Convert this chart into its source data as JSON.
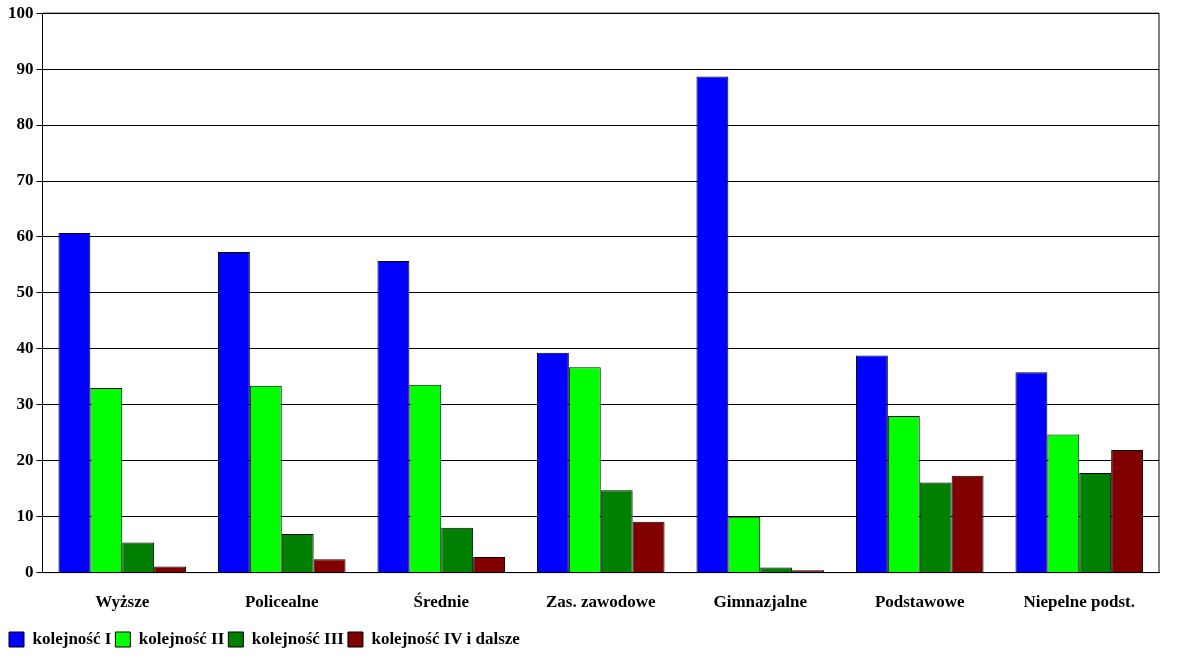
{
  "chart_data": {
    "type": "bar",
    "categories": [
      "Wyższe",
      "Policealne",
      "Średnie",
      "Zas. zawodowe",
      "Gimnazjalne",
      "Podstawowe",
      "Niepelne podst."
    ],
    "series": [
      {
        "name": "kolejność I",
        "color": "#0000ff",
        "values": [
          60.7,
          57.3,
          55.7,
          39.3,
          88.7,
          38.8,
          35.8
        ]
      },
      {
        "name": "kolejność II",
        "color": "#00ff00",
        "values": [
          33.0,
          33.4,
          33.6,
          36.7,
          10.0,
          28.0,
          24.7
        ]
      },
      {
        "name": "kolejność III",
        "color": "#008000",
        "values": [
          5.4,
          6.9,
          8.0,
          14.7,
          0.9,
          16.1,
          17.8
        ]
      },
      {
        "name": "kolejność IV i dalsze",
        "color": "#800000",
        "values": [
          1.1,
          2.4,
          2.8,
          9.1,
          0.4,
          17.3,
          21.9
        ]
      }
    ],
    "ylim": [
      0,
      100
    ],
    "yticks": [
      0,
      10,
      20,
      30,
      40,
      50,
      60,
      70,
      80,
      90,
      100
    ],
    "grid": "y",
    "legend": "bottom left"
  }
}
